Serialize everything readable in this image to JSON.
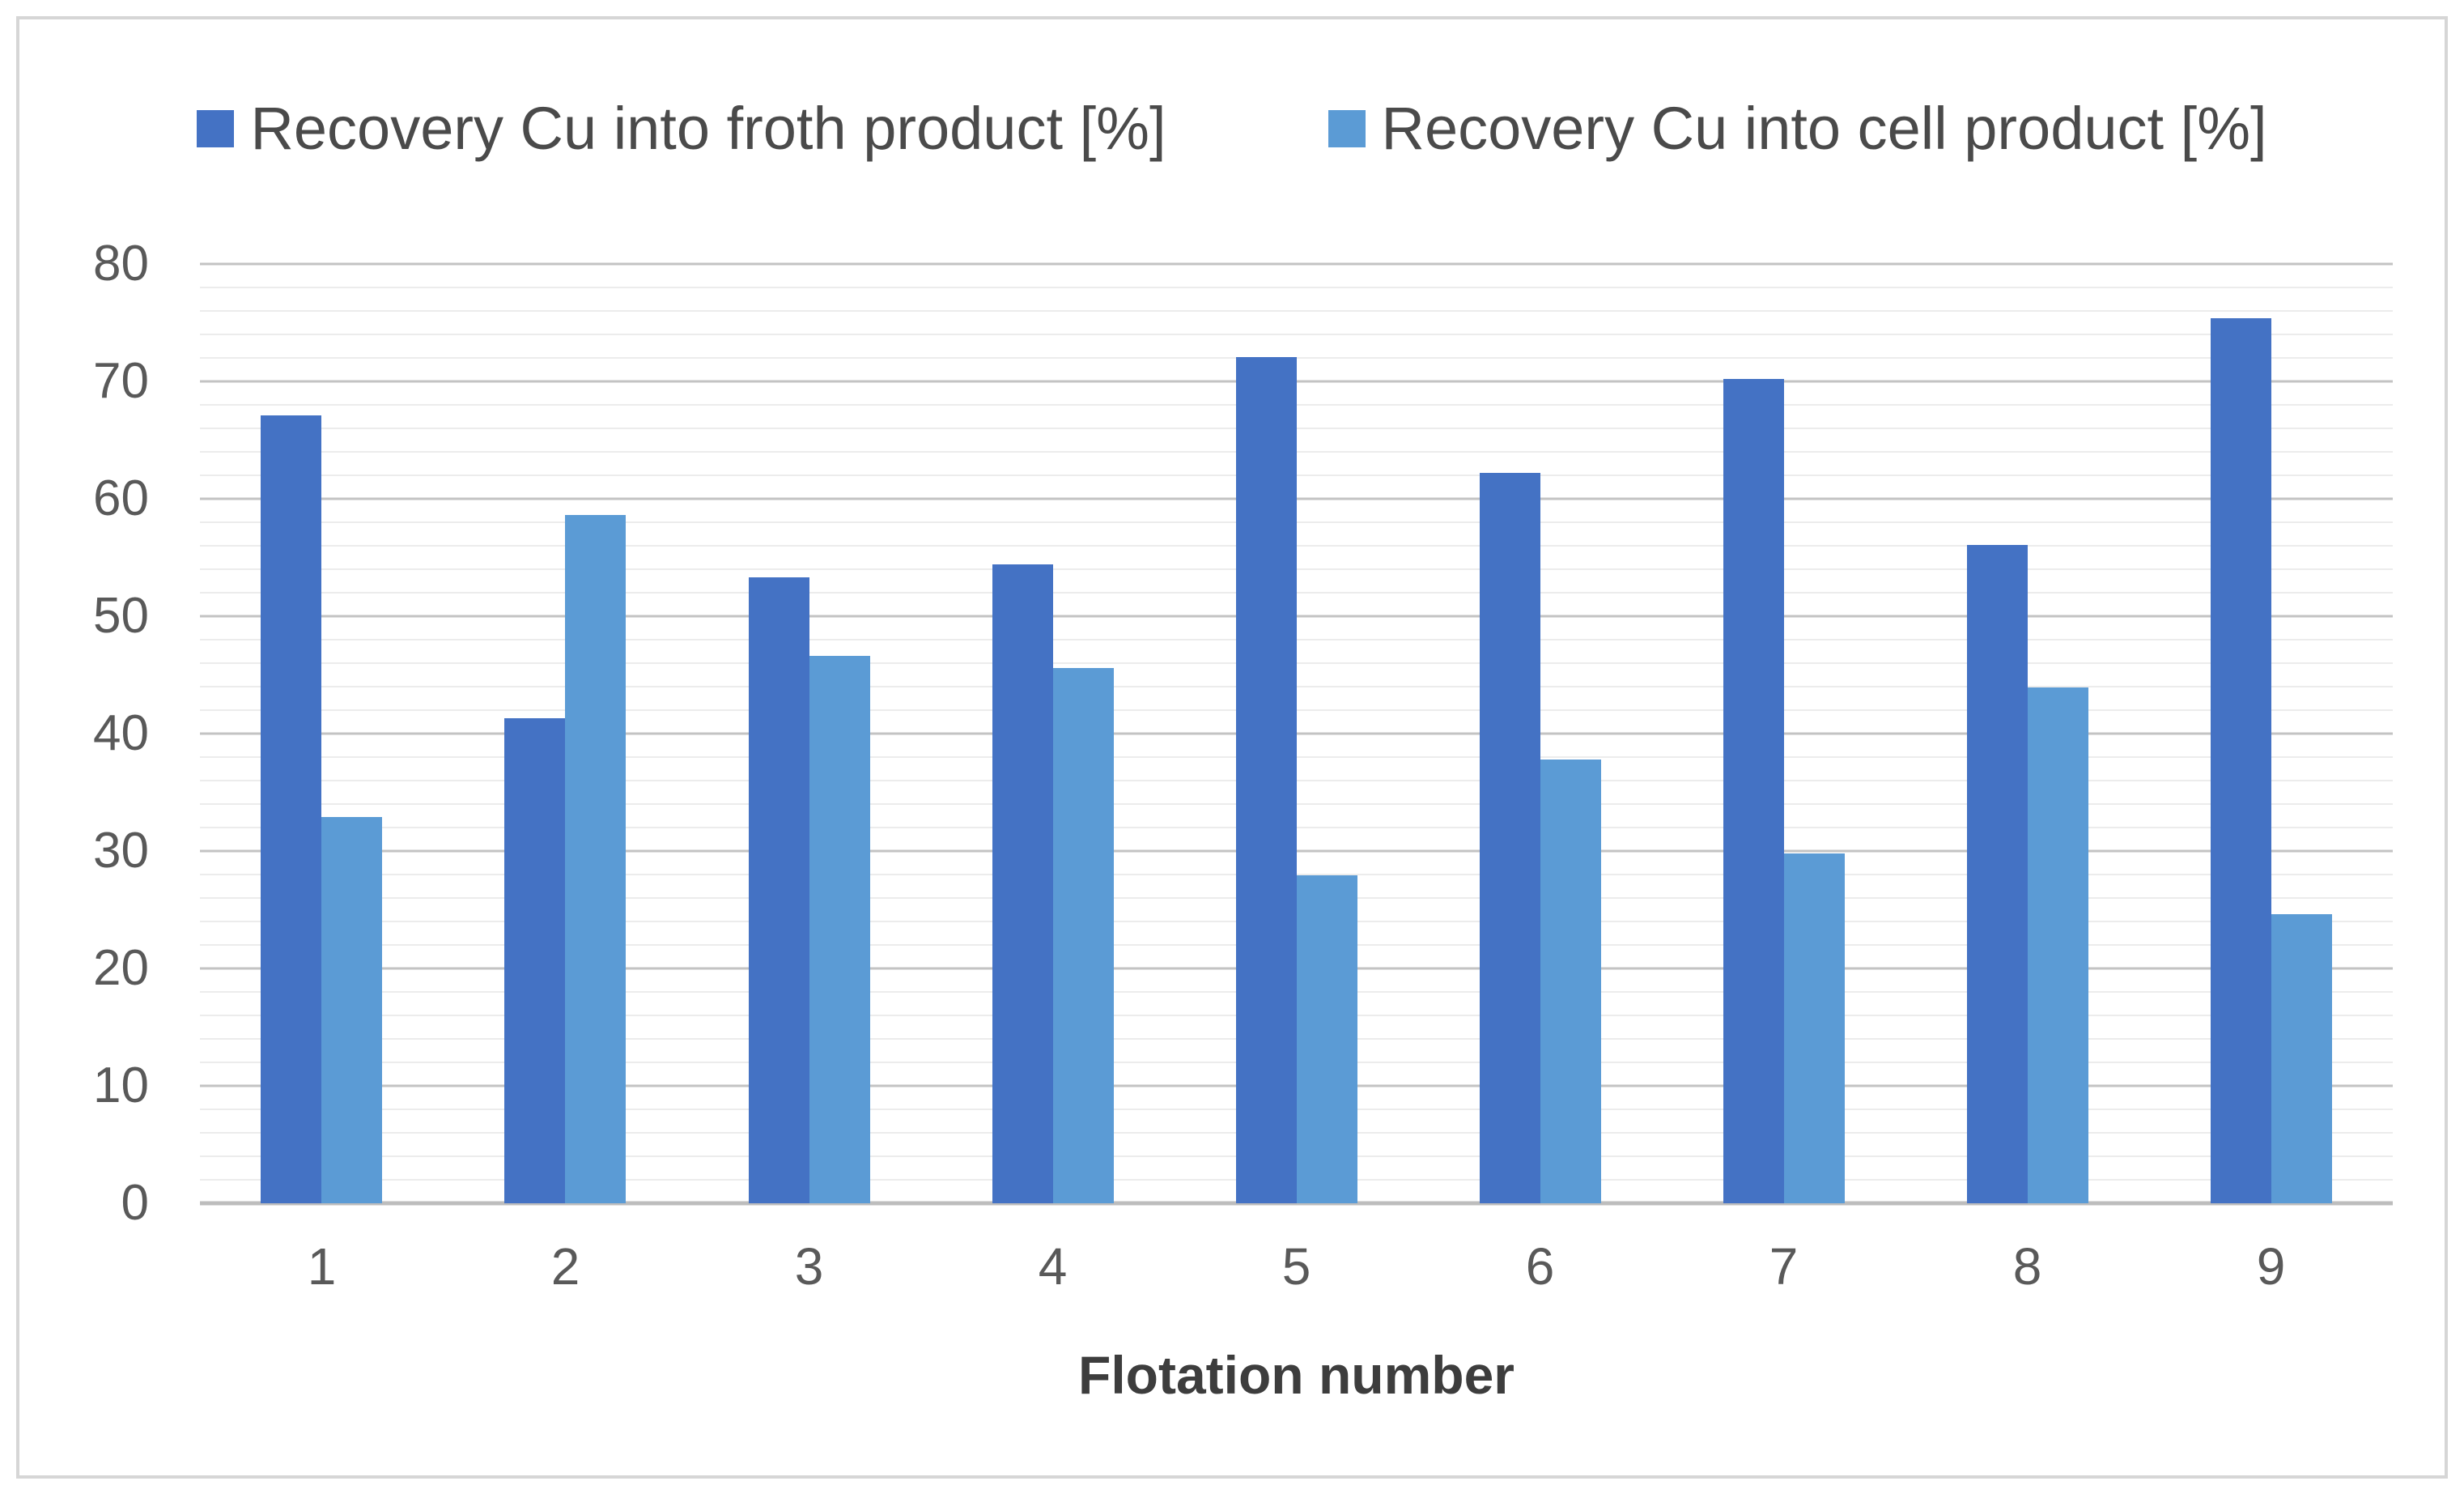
{
  "chart_data": {
    "type": "bar",
    "title": "",
    "categories": [
      "1",
      "2",
      "3",
      "4",
      "5",
      "6",
      "7",
      "8",
      "9"
    ],
    "series": [
      {
        "name": "Recovery Cu into froth product [%]",
        "color": "#4472C4",
        "values": [
          67.1,
          41.3,
          53.3,
          54.4,
          72.1,
          62.2,
          70.2,
          56.1,
          75.4
        ]
      },
      {
        "name": "Recovery Cu into cell product [%]",
        "color": "#5B9BD5",
        "values": [
          32.9,
          58.6,
          46.6,
          45.6,
          27.9,
          37.8,
          29.8,
          43.9,
          24.6
        ]
      }
    ],
    "xlabel": "Flotation number",
    "ylabel": "",
    "ylim": [
      0,
      80
    ],
    "ytick_step": 10,
    "minor_grid_step": 2,
    "grid": true,
    "legend_position": "top",
    "y_tick_labels": [
      "0",
      "10",
      "20",
      "30",
      "40",
      "50",
      "60",
      "70",
      "80"
    ]
  },
  "styles": {
    "frame_border_color": "#d6d6d6",
    "major_grid_color": "#c3c3c3",
    "minor_grid_color": "#ececec",
    "baseline_color": "#bdbdbd",
    "tick_label_color": "#595959",
    "legend_text_color": "#4a4a4a",
    "axis_title_color": "#3d3d3d",
    "background_color": "#ffffff"
  }
}
